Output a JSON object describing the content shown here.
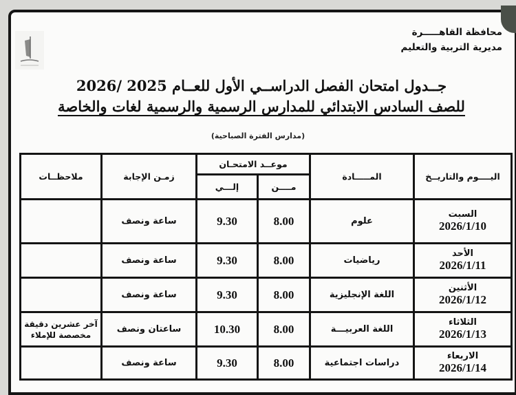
{
  "header": {
    "governorate": "محافظة القاهـــــرة",
    "directorate": "مديرية التربية والتعليم"
  },
  "title": {
    "line1": "جــدول امتحان الفصل الدراســي الأول للعــام 2025 /2026",
    "line2": "للصف السادس الابتدائي للمدارس الرسمية والرسمية لغات والخاصة"
  },
  "period": "(مدارس الفترة الصباحية)",
  "table": {
    "headers": {
      "day_date": "اليــــوم والتاريــخ",
      "subject": "المـــــادة",
      "exam_time": "موعــد الامتحـان",
      "from": "مــــن",
      "to": "إلـــي",
      "duration": "زمـن الإجابة",
      "notes": "ملاحظــات"
    },
    "rows": [
      {
        "day": "السبت",
        "date": "2026/1/10",
        "subject": "علوم",
        "from": "8.00",
        "to": "9.30",
        "duration": "ساعة ونصف",
        "notes": ""
      },
      {
        "day": "الأحد",
        "date": "2026/1/11",
        "subject": "رياضيات",
        "from": "8.00",
        "to": "9.30",
        "duration": "ساعة ونصف",
        "notes": ""
      },
      {
        "day": "الأثنين",
        "date": "2026/1/12",
        "subject": "اللغة الإنجليزية",
        "from": "8.00",
        "to": "9.30",
        "duration": "ساعة ونصف",
        "notes": ""
      },
      {
        "day": "الثلاثاء",
        "date": "2026/1/13",
        "subject": "اللغة العربيـــة",
        "from": "8.00",
        "to": "10.30",
        "duration": "ساعتان ونصف",
        "notes": "آخر عشرين دقيقة مخصصة للإملاء"
      },
      {
        "day": "الاربعاء",
        "date": "2026/1/14",
        "subject": "دراسات اجتماعية",
        "from": "8.00",
        "to": "9.30",
        "duration": "ساعة ونصف",
        "notes": ""
      }
    ]
  }
}
